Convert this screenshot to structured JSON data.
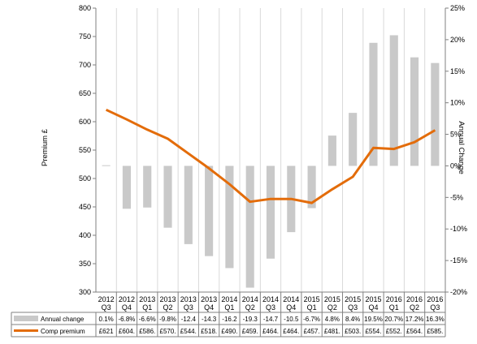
{
  "chart_data": {
    "type": "bar",
    "categories": [
      [
        "2012",
        "Q3"
      ],
      [
        "2012",
        "Q4"
      ],
      [
        "2013",
        "Q1"
      ],
      [
        "2013",
        "Q2"
      ],
      [
        "2013",
        "Q3"
      ],
      [
        "2013",
        "Q4"
      ],
      [
        "2014",
        "Q1"
      ],
      [
        "2014",
        "Q2"
      ],
      [
        "2014",
        "Q3"
      ],
      [
        "2014",
        "Q4"
      ],
      [
        "2015",
        "Q1"
      ],
      [
        "2015",
        "Q2"
      ],
      [
        "2015",
        "Q3"
      ],
      [
        "2015",
        "Q4"
      ],
      [
        "2016",
        "Q1"
      ],
      [
        "2016",
        "Q2"
      ],
      [
        "2016",
        "Q3"
      ]
    ],
    "series": [
      {
        "name": "Annual change",
        "type": "bar",
        "axis": "right",
        "values": [
          0.1,
          -6.8,
          -6.6,
          -9.8,
          -12.4,
          -14.3,
          -16.2,
          -19.3,
          -14.7,
          -10.5,
          -6.7,
          4.8,
          8.4,
          19.5,
          20.7,
          17.2,
          16.3
        ],
        "labels": [
          "0.1%",
          "-6.8%",
          "-6.6%",
          "-9.8%",
          "-12.4",
          "-14.3",
          "-16.2",
          "-19.3",
          "-14.7",
          "-10.5",
          "-6.7%",
          "4.8%",
          "8.4%",
          "19.5%",
          "20.7%",
          "17.2%",
          "16.3%"
        ],
        "color": "#c9c9c9"
      },
      {
        "name": "Comp premium",
        "type": "line",
        "axis": "left",
        "values": [
          621,
          604,
          586,
          570,
          544,
          518,
          490,
          459,
          464,
          464,
          457,
          481,
          503,
          554,
          552,
          564,
          585
        ],
        "labels": [
          "£621",
          "£604.",
          "£586.",
          "£570.",
          "£544.",
          "£518.",
          "£490.",
          "£459.",
          "£464.",
          "£464.",
          "£457.",
          "£481.",
          "£503.",
          "£554.",
          "£552.",
          "£564.",
          "£585."
        ],
        "color": "#e36c0a"
      }
    ],
    "ylabel": "Premium £",
    "y2label": "Annual Change",
    "ylim": [
      300,
      800
    ],
    "y2lim": [
      -20,
      25
    ],
    "yticks": [
      "300",
      "350",
      "400",
      "450",
      "500",
      "550",
      "600",
      "650",
      "700",
      "750",
      "800"
    ],
    "y2ticks": [
      "-20%",
      "-15%",
      "-10%",
      "-5%",
      "0%",
      "5%",
      "10%",
      "15%",
      "20%",
      "25%"
    ],
    "grid": "vertical"
  }
}
